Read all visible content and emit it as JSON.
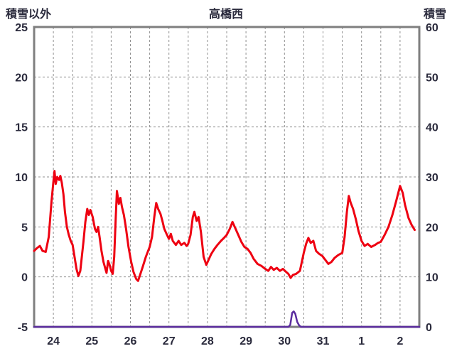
{
  "header": {
    "left_label": "積雪以外",
    "title": "高橋西",
    "right_label": "積雪"
  },
  "colors": {
    "frame": "#7f7f7f",
    "grid": "#909090",
    "text": "#2a2a3c",
    "series_red": "#ee0011",
    "series_purple": "#5b2d9e"
  },
  "chart_data": {
    "type": "line",
    "title": "高橋西",
    "left_axis": {
      "label": "積雪以外",
      "min": -5,
      "max": 25,
      "ticks": [
        25,
        20,
        15,
        10,
        5,
        0,
        -5
      ]
    },
    "right_axis": {
      "label": "積雪",
      "min": 0,
      "max": 60,
      "ticks": [
        60,
        50,
        40,
        30,
        20,
        10,
        0
      ]
    },
    "x_axis": {
      "labels": [
        "24",
        "25",
        "26",
        "27",
        "28",
        "29",
        "30",
        "31",
        "1",
        "2"
      ],
      "days": 10
    },
    "grid": {
      "h_values": [
        0,
        5,
        10,
        15,
        20
      ],
      "v_step_days": 0.5
    },
    "series": [
      {
        "name": "積雪以外",
        "axis": "left",
        "color": "#ee0011",
        "width": 3,
        "points": [
          [
            0.0,
            2.6
          ],
          [
            0.08,
            2.9
          ],
          [
            0.15,
            3.1
          ],
          [
            0.22,
            2.6
          ],
          [
            0.3,
            2.5
          ],
          [
            0.38,
            4.0
          ],
          [
            0.45,
            7.5
          ],
          [
            0.5,
            9.5
          ],
          [
            0.53,
            10.6
          ],
          [
            0.56,
            9.3
          ],
          [
            0.6,
            10.0
          ],
          [
            0.65,
            9.7
          ],
          [
            0.68,
            10.1
          ],
          [
            0.72,
            9.4
          ],
          [
            0.76,
            8.3
          ],
          [
            0.8,
            6.5
          ],
          [
            0.85,
            5.0
          ],
          [
            0.9,
            4.2
          ],
          [
            0.95,
            3.6
          ],
          [
            1.0,
            3.2
          ],
          [
            1.05,
            2.0
          ],
          [
            1.1,
            0.8
          ],
          [
            1.15,
            0.1
          ],
          [
            1.2,
            0.6
          ],
          [
            1.28,
            3.5
          ],
          [
            1.33,
            5.5
          ],
          [
            1.38,
            6.8
          ],
          [
            1.42,
            6.2
          ],
          [
            1.46,
            6.7
          ],
          [
            1.52,
            6.0
          ],
          [
            1.58,
            4.8
          ],
          [
            1.62,
            4.5
          ],
          [
            1.66,
            5.0
          ],
          [
            1.7,
            4.0
          ],
          [
            1.75,
            2.6
          ],
          [
            1.8,
            1.5
          ],
          [
            1.85,
            0.8
          ],
          [
            1.88,
            0.4
          ],
          [
            1.92,
            1.6
          ],
          [
            1.96,
            1.2
          ],
          [
            2.0,
            0.6
          ],
          [
            2.04,
            0.3
          ],
          [
            2.08,
            2.0
          ],
          [
            2.12,
            6.0
          ],
          [
            2.15,
            8.6
          ],
          [
            2.2,
            7.3
          ],
          [
            2.24,
            7.9
          ],
          [
            2.28,
            7.0
          ],
          [
            2.33,
            6.2
          ],
          [
            2.38,
            5.0
          ],
          [
            2.45,
            3.0
          ],
          [
            2.52,
            1.5
          ],
          [
            2.58,
            0.5
          ],
          [
            2.65,
            -0.2
          ],
          [
            2.7,
            -0.4
          ],
          [
            2.75,
            0.2
          ],
          [
            2.82,
            1.0
          ],
          [
            2.9,
            2.0
          ],
          [
            2.96,
            2.6
          ],
          [
            3.0,
            3.0
          ],
          [
            3.06,
            4.0
          ],
          [
            3.12,
            6.0
          ],
          [
            3.17,
            7.4
          ],
          [
            3.22,
            6.8
          ],
          [
            3.28,
            6.3
          ],
          [
            3.33,
            5.6
          ],
          [
            3.38,
            4.8
          ],
          [
            3.44,
            4.3
          ],
          [
            3.5,
            3.8
          ],
          [
            3.55,
            4.3
          ],
          [
            3.6,
            3.6
          ],
          [
            3.68,
            3.2
          ],
          [
            3.75,
            3.6
          ],
          [
            3.82,
            3.2
          ],
          [
            3.9,
            3.4
          ],
          [
            3.96,
            3.1
          ],
          [
            4.0,
            3.3
          ],
          [
            4.06,
            4.2
          ],
          [
            4.12,
            6.0
          ],
          [
            4.16,
            6.5
          ],
          [
            4.22,
            5.6
          ],
          [
            4.27,
            6.0
          ],
          [
            4.33,
            4.5
          ],
          [
            4.4,
            2.0
          ],
          [
            4.47,
            1.2
          ],
          [
            4.54,
            1.8
          ],
          [
            4.6,
            2.3
          ],
          [
            4.68,
            2.8
          ],
          [
            4.76,
            3.2
          ],
          [
            4.85,
            3.6
          ],
          [
            4.93,
            3.9
          ],
          [
            5.0,
            4.2
          ],
          [
            5.08,
            4.8
          ],
          [
            5.15,
            5.5
          ],
          [
            5.22,
            4.9
          ],
          [
            5.3,
            4.2
          ],
          [
            5.38,
            3.5
          ],
          [
            5.46,
            3.0
          ],
          [
            5.54,
            2.8
          ],
          [
            5.62,
            2.4
          ],
          [
            5.7,
            1.8
          ],
          [
            5.8,
            1.3
          ],
          [
            5.9,
            1.1
          ],
          [
            6.0,
            0.8
          ],
          [
            6.08,
            0.6
          ],
          [
            6.15,
            1.0
          ],
          [
            6.22,
            0.7
          ],
          [
            6.3,
            0.9
          ],
          [
            6.38,
            0.6
          ],
          [
            6.46,
            0.8
          ],
          [
            6.54,
            0.5
          ],
          [
            6.6,
            0.3
          ],
          [
            6.66,
            -0.1
          ],
          [
            6.72,
            0.2
          ],
          [
            6.8,
            0.3
          ],
          [
            6.9,
            0.6
          ],
          [
            7.0,
            2.4
          ],
          [
            7.06,
            3.3
          ],
          [
            7.12,
            3.9
          ],
          [
            7.18,
            3.4
          ],
          [
            7.25,
            3.6
          ],
          [
            7.32,
            2.6
          ],
          [
            7.4,
            2.3
          ],
          [
            7.48,
            2.1
          ],
          [
            7.56,
            1.7
          ],
          [
            7.64,
            1.3
          ],
          [
            7.72,
            1.5
          ],
          [
            7.8,
            1.9
          ],
          [
            7.9,
            2.2
          ],
          [
            8.0,
            2.4
          ],
          [
            8.06,
            4.0
          ],
          [
            8.12,
            6.5
          ],
          [
            8.17,
            8.1
          ],
          [
            8.22,
            7.4
          ],
          [
            8.28,
            6.8
          ],
          [
            8.35,
            5.8
          ],
          [
            8.42,
            4.6
          ],
          [
            8.5,
            3.6
          ],
          [
            8.58,
            3.1
          ],
          [
            8.66,
            3.3
          ],
          [
            8.75,
            3.0
          ],
          [
            8.85,
            3.2
          ],
          [
            8.93,
            3.4
          ],
          [
            9.0,
            3.5
          ],
          [
            9.1,
            4.2
          ],
          [
            9.2,
            5.0
          ],
          [
            9.3,
            6.2
          ],
          [
            9.4,
            7.6
          ],
          [
            9.5,
            9.1
          ],
          [
            9.57,
            8.4
          ],
          [
            9.63,
            7.2
          ],
          [
            9.72,
            5.9
          ],
          [
            9.8,
            5.2
          ],
          [
            9.88,
            4.7
          ]
        ]
      },
      {
        "name": "積雪",
        "axis": "right",
        "color": "#5b2d9e",
        "width": 2.5,
        "points": [
          [
            0,
            0
          ],
          [
            6.6,
            0
          ],
          [
            6.65,
            0.4
          ],
          [
            6.7,
            2.8
          ],
          [
            6.74,
            3.1
          ],
          [
            6.78,
            2.6
          ],
          [
            6.83,
            1.0
          ],
          [
            6.88,
            0.3
          ],
          [
            6.93,
            0
          ],
          [
            10,
            0
          ]
        ]
      }
    ]
  }
}
